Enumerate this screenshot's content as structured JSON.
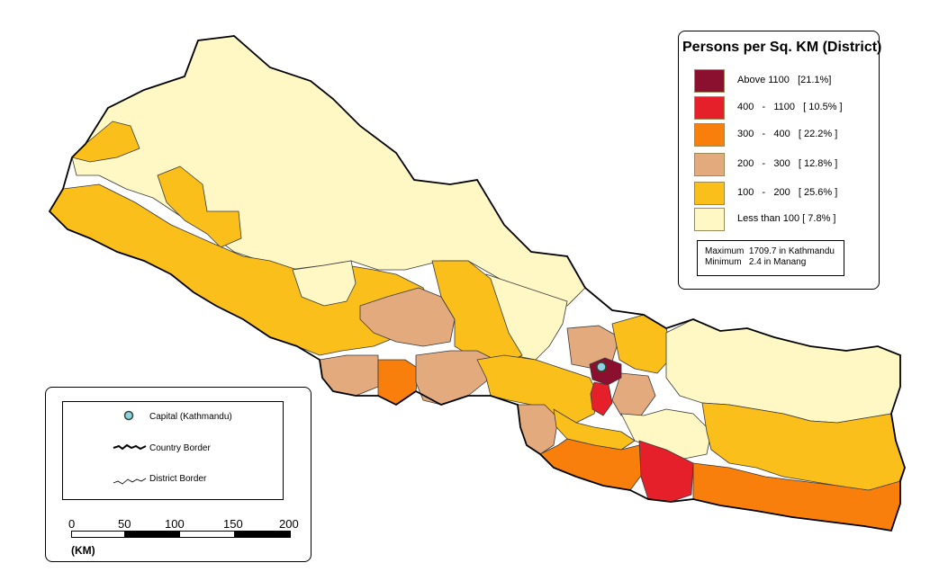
{
  "legend": {
    "title": "Persons per Sq. KM (District)",
    "classes": [
      {
        "label": "Above 1100   [21.1%]",
        "color": "#8b0f2e"
      },
      {
        "label": "400   -   1100   [ 10.5% ]",
        "color": "#e5202a"
      },
      {
        "label": "300   -   400   [ 22.2% ]",
        "color": "#f97f0d"
      },
      {
        "label": "200   -   300   [ 12.8% ]",
        "color": "#e3aa7e"
      },
      {
        "label": "100   -   200   [ 25.6% ]",
        "color": "#fbbf1c"
      },
      {
        "label": "Less than 100 [ 7.8% ]",
        "color": "#fff8c4"
      }
    ],
    "stats": {
      "maximum": "Maximum  1709.7 in Kathmandu",
      "minimum": "Minimum   2.4 in Manang"
    }
  },
  "key": {
    "capital_label": "Capital (Kathmandu)",
    "country_border_label": "Country Border",
    "district_border_label": "District Border"
  },
  "scale": {
    "ticks": [
      "0",
      "50",
      "100",
      "150",
      "200"
    ],
    "unit": "(KM)"
  }
}
